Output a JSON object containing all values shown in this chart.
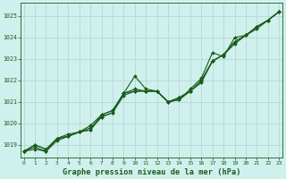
{
  "bg_color": "#d0f0ee",
  "plot_bg_color": "#d0f0ee",
  "grid_color": "#b8d8d4",
  "line_color": "#1a5c1a",
  "text_color": "#1a5c1a",
  "title": "Graphe pression niveau de la mer (hPa)",
  "xlim": [
    -0.3,
    23.3
  ],
  "ylim": [
    1018.4,
    1025.6
  ],
  "yticks": [
    1019,
    1020,
    1021,
    1022,
    1023,
    1024,
    1025
  ],
  "xticks": [
    0,
    1,
    2,
    3,
    4,
    5,
    6,
    7,
    8,
    9,
    10,
    11,
    12,
    13,
    14,
    15,
    16,
    17,
    18,
    19,
    20,
    21,
    22,
    23
  ],
  "series": [
    [
      1018.7,
      1018.9,
      1018.7,
      1019.3,
      1019.4,
      1019.6,
      1019.7,
      1020.4,
      1020.6,
      1021.4,
      1022.2,
      1021.6,
      1021.5,
      1021.0,
      1021.1,
      1021.6,
      1022.1,
      1023.3,
      1023.1,
      1024.0,
      1024.1,
      1024.5,
      1024.8,
      1025.2
    ],
    [
      1018.7,
      1018.8,
      1018.7,
      1019.2,
      1019.4,
      1019.6,
      1019.7,
      1020.3,
      1020.5,
      1021.3,
      1021.5,
      1021.5,
      1021.5,
      1021.0,
      1021.1,
      1021.5,
      1021.9,
      1022.9,
      1023.2,
      1023.7,
      1024.1,
      1024.4,
      1024.8,
      1025.2
    ],
    [
      1018.7,
      1019.0,
      1018.8,
      1019.3,
      1019.4,
      1019.6,
      1019.8,
      1020.3,
      1020.5,
      1021.4,
      1021.5,
      1021.5,
      1021.5,
      1021.0,
      1021.2,
      1021.5,
      1022.0,
      1022.9,
      1023.2,
      1023.8,
      1024.1,
      1024.5,
      1024.8,
      1025.2
    ],
    [
      1018.7,
      1019.0,
      1018.8,
      1019.3,
      1019.5,
      1019.6,
      1019.9,
      1020.4,
      1020.6,
      1021.4,
      1021.6,
      1021.5,
      1021.5,
      1021.0,
      1021.2,
      1021.5,
      1022.0,
      1022.9,
      1023.2,
      1023.8,
      1024.1,
      1024.5,
      1024.8,
      1025.2
    ]
  ],
  "marker_series": [
    0,
    1,
    2,
    3
  ]
}
